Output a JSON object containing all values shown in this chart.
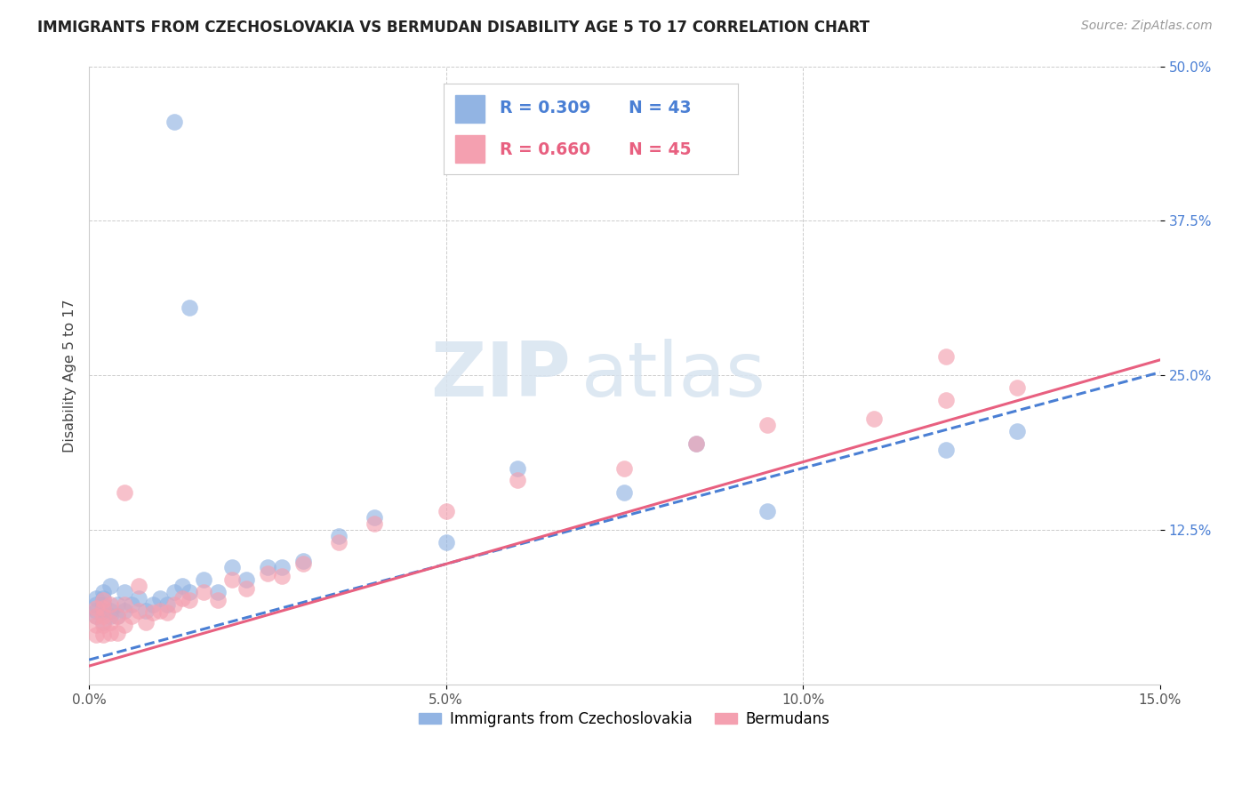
{
  "title": "IMMIGRANTS FROM CZECHOSLOVAKIA VS BERMUDAN DISABILITY AGE 5 TO 17 CORRELATION CHART",
  "source": "Source: ZipAtlas.com",
  "ylabel": "Disability Age 5 to 17",
  "legend_label1": "Immigrants from Czechoslovakia",
  "legend_label2": "Bermudans",
  "r1": 0.309,
  "n1": 43,
  "r2": 0.66,
  "n2": 45,
  "xlim": [
    0.0,
    0.15
  ],
  "ylim": [
    0.0,
    0.5
  ],
  "xticks": [
    0.0,
    0.05,
    0.1,
    0.15
  ],
  "xtick_labels": [
    "0.0%",
    "5.0%",
    "10.0%",
    "15.0%"
  ],
  "ytick_labels_right": [
    "12.5%",
    "25.0%",
    "37.5%",
    "50.0%"
  ],
  "yticks": [
    0.125,
    0.25,
    0.375,
    0.5
  ],
  "color1": "#92b4e3",
  "color2": "#f4a0b0",
  "trendline1_color": "#4a7fd4",
  "trendline2_color": "#e86080",
  "watermark_zip": "ZIP",
  "watermark_atlas": "atlas",
  "background_color": "#ffffff",
  "grid_color": "#cccccc",
  "blue_x": [
    0.001,
    0.001,
    0.001,
    0.001,
    0.002,
    0.002,
    0.002,
    0.002,
    0.002,
    0.003,
    0.003,
    0.003,
    0.004,
    0.004,
    0.005,
    0.005,
    0.006,
    0.007,
    0.008,
    0.009,
    0.01,
    0.011,
    0.012,
    0.013,
    0.014,
    0.016,
    0.018,
    0.02,
    0.022,
    0.025,
    0.027,
    0.03,
    0.035,
    0.04,
    0.05,
    0.06,
    0.075,
    0.085,
    0.095,
    0.12,
    0.13,
    0.014,
    0.012
  ],
  "blue_y": [
    0.055,
    0.06,
    0.065,
    0.07,
    0.05,
    0.06,
    0.065,
    0.07,
    0.075,
    0.055,
    0.06,
    0.08,
    0.055,
    0.065,
    0.06,
    0.075,
    0.065,
    0.07,
    0.06,
    0.065,
    0.07,
    0.065,
    0.075,
    0.08,
    0.075,
    0.085,
    0.075,
    0.095,
    0.085,
    0.095,
    0.095,
    0.1,
    0.12,
    0.135,
    0.115,
    0.175,
    0.155,
    0.195,
    0.14,
    0.19,
    0.205,
    0.305,
    0.455
  ],
  "pink_x": [
    0.001,
    0.001,
    0.001,
    0.001,
    0.002,
    0.002,
    0.002,
    0.002,
    0.002,
    0.003,
    0.003,
    0.003,
    0.004,
    0.004,
    0.005,
    0.005,
    0.006,
    0.007,
    0.008,
    0.009,
    0.01,
    0.011,
    0.012,
    0.013,
    0.014,
    0.016,
    0.018,
    0.02,
    0.022,
    0.025,
    0.027,
    0.03,
    0.035,
    0.04,
    0.05,
    0.06,
    0.075,
    0.085,
    0.095,
    0.11,
    0.12,
    0.13,
    0.005,
    0.007,
    0.12
  ],
  "pink_y": [
    0.04,
    0.048,
    0.055,
    0.062,
    0.04,
    0.048,
    0.055,
    0.062,
    0.068,
    0.042,
    0.05,
    0.065,
    0.042,
    0.055,
    0.048,
    0.065,
    0.055,
    0.06,
    0.05,
    0.058,
    0.06,
    0.058,
    0.065,
    0.07,
    0.068,
    0.075,
    0.068,
    0.085,
    0.078,
    0.09,
    0.088,
    0.098,
    0.115,
    0.13,
    0.14,
    0.165,
    0.175,
    0.195,
    0.21,
    0.215,
    0.23,
    0.24,
    0.155,
    0.08,
    0.265
  ],
  "trendline1_intercept": 0.02,
  "trendline1_slope": 1.55,
  "trendline2_intercept": 0.015,
  "trendline2_slope": 1.65
}
